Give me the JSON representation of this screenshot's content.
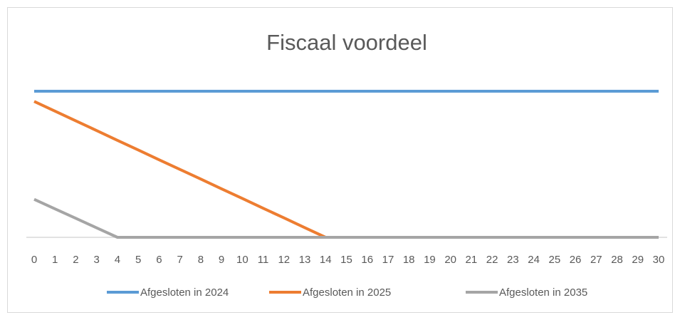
{
  "chart_data": {
    "type": "line",
    "title": "Fiscaal voordeel",
    "x": [
      0,
      1,
      2,
      3,
      4,
      5,
      6,
      7,
      8,
      9,
      10,
      11,
      12,
      13,
      14,
      15,
      16,
      17,
      18,
      19,
      20,
      21,
      22,
      23,
      24,
      25,
      26,
      27,
      28,
      29,
      30
    ],
    "xlim": [
      0,
      30
    ],
    "ylim": [
      0,
      100
    ],
    "series": [
      {
        "name": "Afgesloten in 2024",
        "color": "#5b9bd5",
        "values": [
          100,
          100,
          100,
          100,
          100,
          100,
          100,
          100,
          100,
          100,
          100,
          100,
          100,
          100,
          100,
          100,
          100,
          100,
          100,
          100,
          100,
          100,
          100,
          100,
          100,
          100,
          100,
          100,
          100,
          100,
          100
        ]
      },
      {
        "name": "Afgesloten in 2025",
        "color": "#ed7d31",
        "values": [
          93,
          86.4,
          79.7,
          73.1,
          66.4,
          59.8,
          53.1,
          46.5,
          39.9,
          33.2,
          26.6,
          19.9,
          13.3,
          6.6,
          0,
          0,
          0,
          0,
          0,
          0,
          0,
          0,
          0,
          0,
          0,
          0,
          0,
          0,
          0,
          0,
          0
        ]
      },
      {
        "name": "Afgesloten in 2035",
        "color": "#a5a5a5",
        "values": [
          26,
          19.5,
          13,
          6.5,
          0,
          0,
          0,
          0,
          0,
          0,
          0,
          0,
          0,
          0,
          0,
          0,
          0,
          0,
          0,
          0,
          0,
          0,
          0,
          0,
          0,
          0,
          0,
          0,
          0,
          0,
          0
        ]
      }
    ],
    "grid": false,
    "legend": "bottom"
  }
}
